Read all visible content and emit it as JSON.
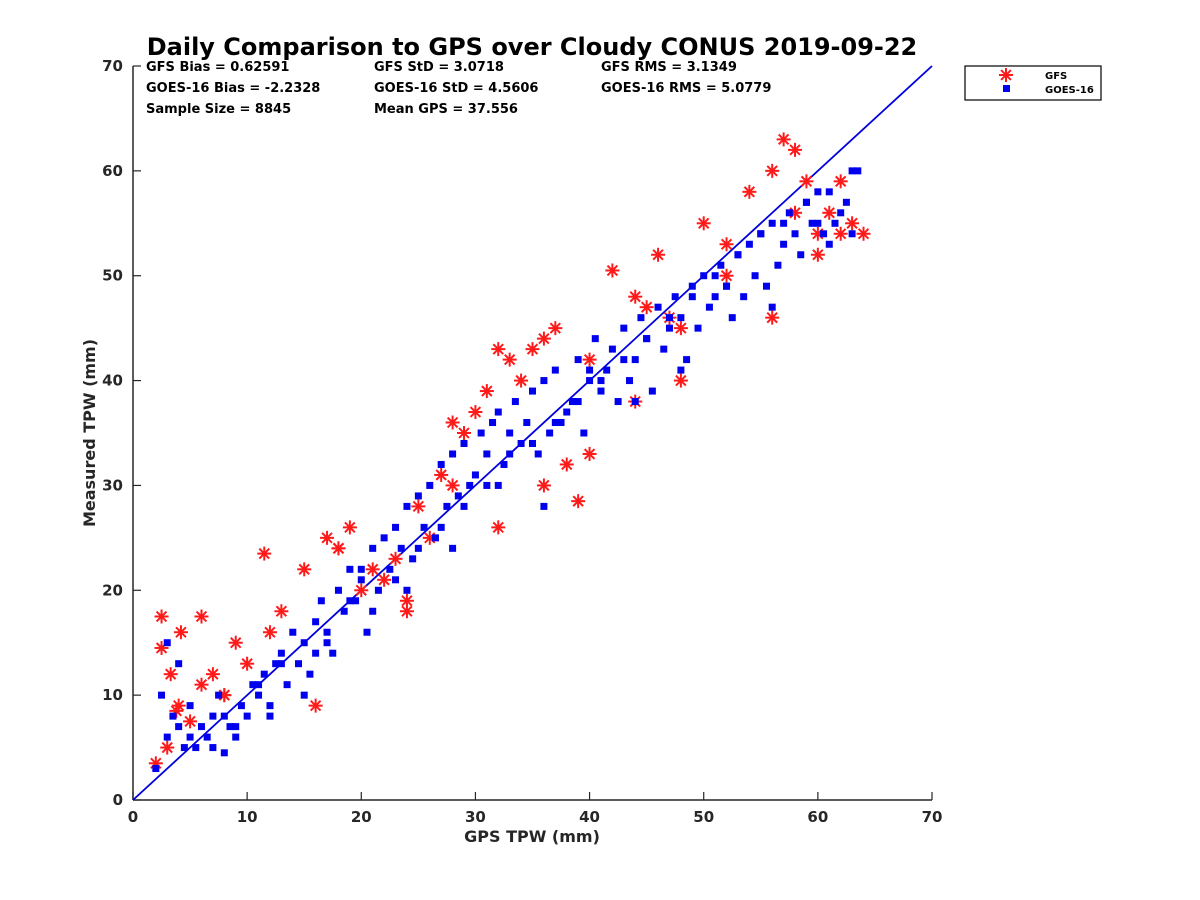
{
  "chart_data": {
    "type": "scatter",
    "title": "Daily Comparison to GPS over Cloudy CONUS 2019-09-22",
    "xlabel": "GPS TPW (mm)",
    "ylabel": "Measured TPW (mm)",
    "xlim": [
      0,
      70
    ],
    "ylim": [
      0,
      70
    ],
    "xticks": [
      "0",
      "10",
      "20",
      "30",
      "40",
      "50",
      "60",
      "70"
    ],
    "yticks": [
      "0",
      "10",
      "20",
      "30",
      "40",
      "50",
      "60",
      "70"
    ],
    "grid": false,
    "legend_position": "outside-top-right",
    "one_to_one_line": true,
    "stats": [
      [
        "GFS Bias = 0.62591",
        "GFS StD = 3.0718",
        "GFS RMS = 3.1349"
      ],
      [
        "GOES-16 Bias = -2.2328",
        "GOES-16 StD = 4.5606",
        "GOES-16 RMS = 5.0779"
      ],
      [
        "Sample Size = 8845",
        "Mean GPS = 37.556"
      ]
    ],
    "colors": {
      "gfs": "#ff1a1a",
      "goes16": "#0000ee",
      "line": "#0000dd"
    },
    "series": [
      {
        "name": "GFS",
        "marker": "asterisk",
        "x": [
          2,
          2.5,
          3,
          3.3,
          3.8,
          4.2,
          5,
          6,
          7,
          8,
          9,
          10,
          11.5,
          13,
          15,
          17,
          18,
          19,
          20,
          21,
          22,
          23,
          24,
          25,
          26,
          27,
          28,
          29,
          30,
          31,
          32,
          33,
          34,
          35,
          36,
          37,
          38,
          39,
          40,
          42,
          44,
          45,
          46,
          47,
          48,
          50,
          52,
          54,
          56,
          57,
          58,
          59,
          60,
          61,
          62,
          63,
          64,
          2.5,
          4,
          6,
          8,
          12,
          16,
          18,
          24,
          28,
          32,
          36,
          40,
          44,
          48,
          52,
          56,
          58,
          60,
          62
        ],
        "y": [
          3.5,
          17.5,
          5,
          12,
          8.5,
          16,
          7.5,
          17.5,
          12,
          10,
          15,
          13,
          23.5,
          18,
          22,
          25,
          24,
          26,
          20,
          22,
          21,
          23,
          19,
          28,
          25,
          31,
          36,
          35,
          37,
          39,
          43,
          42,
          40,
          43,
          44,
          45,
          32,
          28.5,
          42,
          50.5,
          48,
          47,
          52,
          46,
          45,
          55,
          53,
          58,
          60,
          63,
          62,
          59,
          54,
          56,
          54,
          55,
          54,
          14.5,
          9,
          11,
          10,
          16,
          9,
          24,
          18,
          30,
          26,
          30,
          33,
          38,
          40,
          50,
          46,
          56,
          52,
          59
        ],
        "y_stats_note": ""
      },
      {
        "name": "GOES-16",
        "marker": "square",
        "x": [
          2,
          2.5,
          3,
          3.5,
          4,
          4.5,
          5,
          5.5,
          6,
          6.5,
          7,
          7.5,
          8,
          8.5,
          9,
          9.5,
          10,
          10.5,
          11,
          11.5,
          12,
          12.5,
          13,
          13.5,
          14,
          14.5,
          15,
          15.5,
          16,
          16.5,
          17,
          17.5,
          18,
          18.5,
          19,
          19.5,
          20,
          20.5,
          21,
          21.5,
          22,
          22.5,
          23,
          23.5,
          24,
          24.5,
          25,
          25.5,
          26,
          26.5,
          27,
          27.5,
          28,
          28.5,
          29,
          29.5,
          30,
          30.5,
          31,
          31.5,
          32,
          32.5,
          33,
          33.5,
          34,
          34.5,
          35,
          35.5,
          36,
          36.5,
          37,
          37.5,
          38,
          38.5,
          39,
          39.5,
          40,
          40.5,
          41,
          41.5,
          42,
          42.5,
          43,
          43.5,
          44,
          44.5,
          45,
          45.5,
          46,
          46.5,
          47,
          47.5,
          48,
          48.5,
          49,
          49.5,
          50,
          50.5,
          51,
          51.5,
          52,
          52.5,
          53,
          53.5,
          54,
          54.5,
          55,
          55.5,
          56,
          56.5,
          57,
          57.5,
          58,
          58.5,
          59,
          59.5,
          60,
          60.5,
          61,
          61.5,
          62,
          62.5,
          63,
          63.5,
          3,
          5,
          7,
          9,
          11,
          13,
          15,
          17,
          19,
          21,
          23,
          25,
          27,
          29,
          31,
          33,
          35,
          37,
          39,
          41,
          43,
          45,
          47,
          49,
          51,
          53,
          55,
          57,
          59,
          61,
          63,
          4,
          8,
          12,
          16,
          20,
          24,
          28,
          32,
          36,
          40,
          44,
          48,
          52,
          56,
          60
        ],
        "y": [
          3,
          10,
          6,
          8,
          7,
          5,
          9,
          5,
          7,
          6,
          5,
          10,
          8,
          7,
          6,
          9,
          8,
          11,
          10,
          12,
          9,
          13,
          14,
          11,
          16,
          13,
          15,
          12,
          17,
          19,
          16,
          14,
          20,
          18,
          22,
          19,
          21,
          16,
          24,
          20,
          25,
          22,
          26,
          24,
          28,
          23,
          29,
          26,
          30,
          25,
          32,
          28,
          33,
          29,
          34,
          30,
          31,
          35,
          33,
          36,
          37,
          32,
          35,
          38,
          34,
          36,
          39,
          33,
          40,
          35,
          41,
          36,
          37,
          38,
          42,
          35,
          40,
          44,
          39,
          41,
          43,
          38,
          45,
          40,
          42,
          46,
          44,
          39,
          47,
          43,
          45,
          48,
          46,
          42,
          49,
          45,
          50,
          47,
          48,
          51,
          49,
          46,
          52,
          48,
          53,
          50,
          54,
          49,
          55,
          51,
          53,
          56,
          54,
          52,
          57,
          55,
          58,
          54,
          53,
          55,
          56,
          57,
          54,
          60,
          15,
          6,
          8,
          7,
          11,
          13,
          10,
          15,
          19,
          18,
          21,
          24,
          26,
          28,
          30,
          33,
          34,
          36,
          38,
          40,
          42,
          44,
          46,
          48,
          50,
          52,
          54,
          55,
          57,
          58,
          60,
          13,
          4.5,
          8,
          14,
          22,
          20,
          24,
          30,
          28,
          41,
          38,
          41,
          49,
          47,
          55
        ]
      }
    ]
  }
}
